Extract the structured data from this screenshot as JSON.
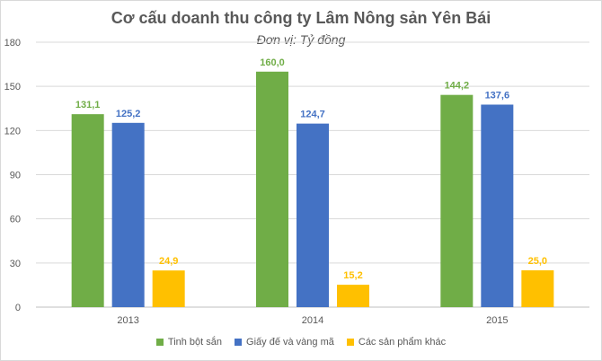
{
  "chart_data": {
    "type": "bar",
    "title": "Cơ cấu doanh thu công ty Lâm Nông sản Yên Bái",
    "subtitle": "Đơn vị: Tỷ đồng",
    "categories": [
      "2013",
      "2014",
      "2015"
    ],
    "series": [
      {
        "name": "Tinh bột sắn",
        "color": "#70ad47",
        "values": [
          131.1,
          160.0,
          144.2
        ],
        "labels": [
          "131,1",
          "160,0",
          "144,2"
        ]
      },
      {
        "name": "Giấy đế và vàng mã",
        "color": "#4472c4",
        "values": [
          125.2,
          124.7,
          137.6
        ],
        "labels": [
          "125,2",
          "124,7",
          "137,6"
        ]
      },
      {
        "name": "Các sản phẩm khác",
        "color": "#ffc000",
        "values": [
          24.9,
          15.2,
          25.0
        ],
        "labels": [
          "24,9",
          "15,2",
          "25,0"
        ]
      }
    ],
    "ylim": [
      0,
      180
    ],
    "yticks": [
      0,
      30,
      60,
      90,
      120,
      150,
      180
    ],
    "grid": true,
    "legend_position": "bottom"
  }
}
